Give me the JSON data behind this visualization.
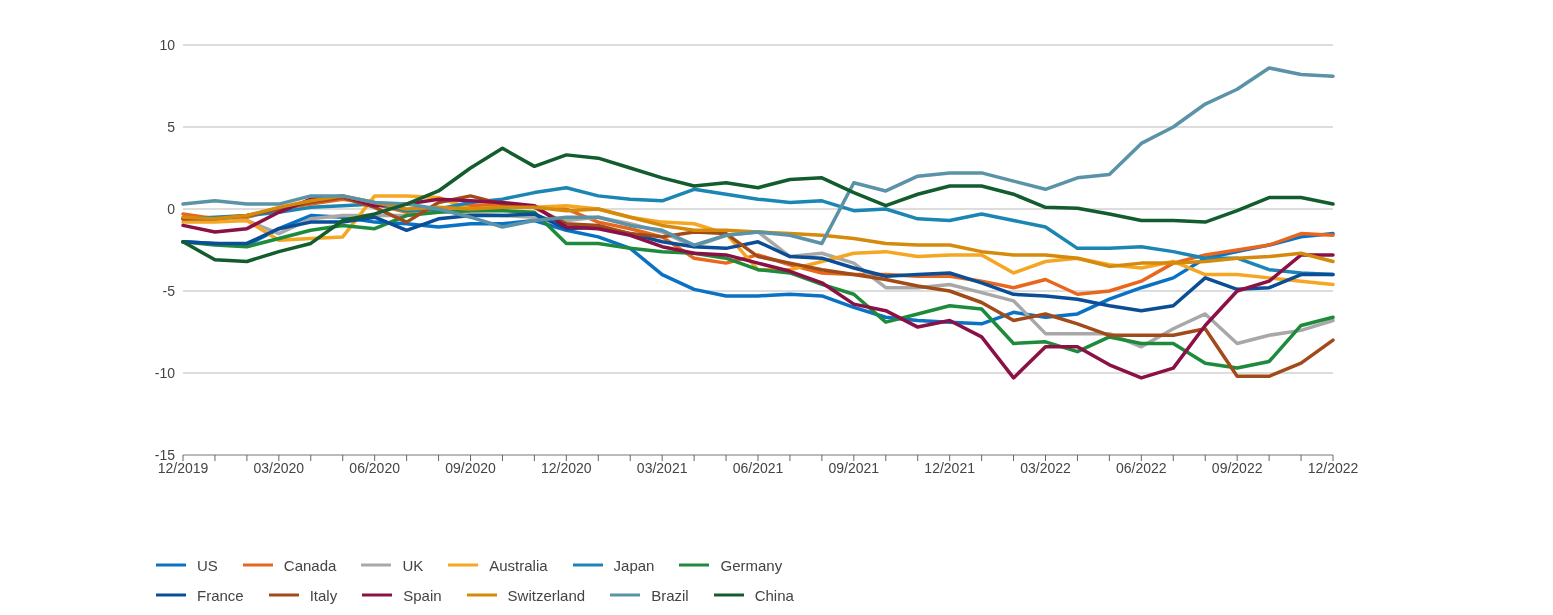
{
  "chart_data": {
    "type": "line",
    "categories": [
      "12/2019",
      null,
      null,
      "03/2020",
      null,
      null,
      "06/2020",
      null,
      null,
      "09/2020",
      null,
      null,
      "12/2020",
      null,
      null,
      "03/2021",
      null,
      null,
      "06/2021",
      null,
      null,
      "09/2021",
      null,
      null,
      "12/2021",
      null,
      null,
      "03/2022",
      null,
      null,
      "06/2022",
      null,
      null,
      "09/2022",
      null,
      null,
      "12/2022"
    ],
    "ylim": [
      -15,
      10
    ],
    "yticks": [
      -15,
      -10,
      -5,
      0,
      5,
      10
    ],
    "grid": "y",
    "legend": "bottom",
    "marker": "none",
    "line_style": "solid",
    "series": [
      {
        "name": "US",
        "color": "#0a72c4",
        "values": [
          -2.0,
          -2.1,
          -2.2,
          -1.2,
          -0.4,
          -0.5,
          -0.8,
          -0.9,
          -1.1,
          -0.9,
          -0.9,
          -0.7,
          -1.3,
          -1.7,
          -2.4,
          -4.0,
          -4.9,
          -5.3,
          -5.3,
          -5.2,
          -5.3,
          -6.0,
          -6.6,
          -6.8,
          -6.9,
          -7.0,
          -6.3,
          -6.6,
          -6.4,
          -5.5,
          -4.8,
          -4.2,
          -3.0,
          -2.6,
          -2.2,
          -1.7,
          -1.5
        ]
      },
      {
        "name": "Canada",
        "color": "#e8671c",
        "values": [
          -0.3,
          -0.6,
          -0.5,
          0.0,
          0.3,
          0.6,
          0.3,
          -0.2,
          0.0,
          0.2,
          0.3,
          0.1,
          0.0,
          -0.8,
          -1.2,
          -1.7,
          -3.0,
          -3.3,
          -2.8,
          -3.4,
          -3.9,
          -4.0,
          -4.0,
          -4.1,
          -4.1,
          -4.4,
          -4.8,
          -4.3,
          -5.2,
          -5.0,
          -4.4,
          -3.3,
          -2.8,
          -2.5,
          -2.2,
          -1.5,
          -1.6
        ]
      },
      {
        "name": "UK",
        "color": "#a8a8a8",
        "values": [
          -0.6,
          -0.7,
          -0.7,
          -1.5,
          -0.6,
          -0.4,
          -0.4,
          -0.4,
          -0.1,
          -0.3,
          -0.4,
          -0.5,
          -0.7,
          -0.5,
          -0.9,
          -1.4,
          -2.3,
          -1.6,
          -1.4,
          -2.9,
          -2.7,
          -3.3,
          -4.8,
          -4.8,
          -4.6,
          -5.1,
          -5.6,
          -7.6,
          -7.6,
          -7.6,
          -8.4,
          -7.3,
          -6.4,
          -8.2,
          -7.7,
          -7.4,
          -6.8
        ]
      },
      {
        "name": "Australia",
        "color": "#f5a623",
        "values": [
          -0.8,
          -0.8,
          -0.7,
          -1.9,
          -1.8,
          -1.7,
          0.8,
          0.8,
          0.7,
          0.0,
          0.1,
          0.1,
          0.2,
          0.0,
          -0.5,
          -0.8,
          -0.9,
          -1.5,
          -3.7,
          -3.7,
          -3.2,
          -2.7,
          -2.6,
          -2.9,
          -2.8,
          -2.8,
          -3.9,
          -3.2,
          -3.0,
          -3.4,
          -3.6,
          -3.2,
          -4.0,
          -4.0,
          -4.2,
          -4.4,
          -4.6
        ]
      },
      {
        "name": "Japan",
        "color": "#1b86b3",
        "values": [
          -0.6,
          -0.5,
          -0.4,
          -0.2,
          0.1,
          0.2,
          0.3,
          -0.1,
          0.0,
          0.4,
          0.6,
          1.0,
          1.3,
          0.8,
          0.6,
          0.5,
          1.2,
          0.9,
          0.6,
          0.4,
          0.5,
          -0.1,
          0.0,
          -0.6,
          -0.7,
          -0.3,
          -0.7,
          -1.1,
          -2.4,
          -2.4,
          -2.3,
          -2.6,
          -3.0,
          -3.0,
          -3.7,
          -3.9,
          -4.0
        ]
      },
      {
        "name": "Germany",
        "color": "#1e8a3c",
        "values": [
          -2.0,
          -2.2,
          -2.3,
          -1.8,
          -1.3,
          -1.0,
          -1.2,
          -0.4,
          -0.2,
          -0.1,
          -0.1,
          -0.2,
          -2.1,
          -2.1,
          -2.4,
          -2.6,
          -2.7,
          -3.0,
          -3.7,
          -3.9,
          -4.6,
          -5.2,
          -6.9,
          -6.4,
          -5.9,
          -6.1,
          -8.2,
          -8.1,
          -8.7,
          -7.8,
          -8.2,
          -8.2,
          -9.4,
          -9.7,
          -9.3,
          -7.1,
          -6.6
        ]
      },
      {
        "name": "France",
        "color": "#0b4e96",
        "values": [
          -2.0,
          -2.1,
          -2.1,
          -1.2,
          -0.8,
          -0.8,
          -0.5,
          -1.3,
          -0.6,
          -0.4,
          -0.4,
          -0.3,
          -1.2,
          -1.1,
          -1.5,
          -2.0,
          -2.3,
          -2.4,
          -2.0,
          -2.9,
          -3.0,
          -3.6,
          -4.1,
          -4.0,
          -3.9,
          -4.5,
          -5.2,
          -5.3,
          -5.5,
          -5.9,
          -6.2,
          -5.9,
          -4.2,
          -4.9,
          -4.8,
          -4.0,
          -4.0
        ]
      },
      {
        "name": "Italy",
        "color": "#a24b1a",
        "values": [
          -0.6,
          -0.6,
          -0.4,
          0.0,
          0.4,
          0.7,
          0.1,
          -0.8,
          0.4,
          0.8,
          0.3,
          0.1,
          -0.9,
          -1.0,
          -1.5,
          -1.7,
          -1.4,
          -1.5,
          -2.9,
          -3.3,
          -3.7,
          -4.0,
          -4.3,
          -4.7,
          -5.0,
          -5.7,
          -6.8,
          -6.4,
          -7.0,
          -7.7,
          -7.7,
          -7.7,
          -7.3,
          -10.2,
          -10.2,
          -9.4,
          -8.0
        ]
      },
      {
        "name": "Spain",
        "color": "#8b1045",
        "values": [
          -1.0,
          -1.4,
          -1.2,
          -0.2,
          0.6,
          0.8,
          0.2,
          0.3,
          0.6,
          0.5,
          0.4,
          0.2,
          -1.1,
          -1.2,
          -1.6,
          -2.3,
          -2.7,
          -2.8,
          -3.3,
          -3.8,
          -4.5,
          -5.8,
          -6.2,
          -7.2,
          -6.8,
          -7.8,
          -10.3,
          -8.4,
          -8.4,
          -9.5,
          -10.3,
          -9.7,
          -7.1,
          -5.0,
          -4.4,
          -2.8,
          -2.8
        ]
      },
      {
        "name": "Switzerland",
        "color": "#d68a0c",
        "values": [
          -0.5,
          -0.6,
          -0.4,
          0.1,
          0.5,
          0.8,
          0.4,
          0.0,
          0.1,
          0.0,
          0.1,
          0.1,
          -0.1,
          0.0,
          -0.5,
          -1.0,
          -1.3,
          -1.3,
          -1.4,
          -1.5,
          -1.6,
          -1.8,
          -2.1,
          -2.2,
          -2.2,
          -2.6,
          -2.8,
          -2.8,
          -3.0,
          -3.5,
          -3.3,
          -3.3,
          -3.2,
          -3.0,
          -2.9,
          -2.7,
          -3.2
        ]
      },
      {
        "name": "Brazil",
        "color": "#5a93a8",
        "values": [
          0.3,
          0.5,
          0.3,
          0.3,
          0.8,
          0.8,
          0.4,
          0.3,
          0.0,
          -0.5,
          -1.1,
          -0.7,
          -0.5,
          -0.5,
          -1.0,
          -1.3,
          -2.2,
          -1.6,
          -1.4,
          -1.6,
          -2.1,
          1.6,
          1.1,
          2.0,
          2.2,
          2.2,
          1.7,
          1.2,
          1.9,
          2.1,
          4.0,
          5.0,
          6.4,
          7.3,
          8.6,
          8.2,
          8.1
        ]
      },
      {
        "name": "China",
        "color": "#135c2e",
        "values": [
          -2.0,
          -3.1,
          -3.2,
          -2.6,
          -2.1,
          -0.7,
          -0.3,
          0.3,
          1.1,
          2.5,
          3.7,
          2.6,
          3.3,
          3.1,
          2.5,
          1.9,
          1.4,
          1.6,
          1.3,
          1.8,
          1.9,
          1.0,
          0.2,
          0.9,
          1.4,
          1.4,
          0.9,
          0.1,
          0.05,
          -0.3,
          -0.7,
          -0.7,
          -0.8,
          -0.1,
          0.7,
          0.7,
          0.3
        ]
      }
    ]
  }
}
